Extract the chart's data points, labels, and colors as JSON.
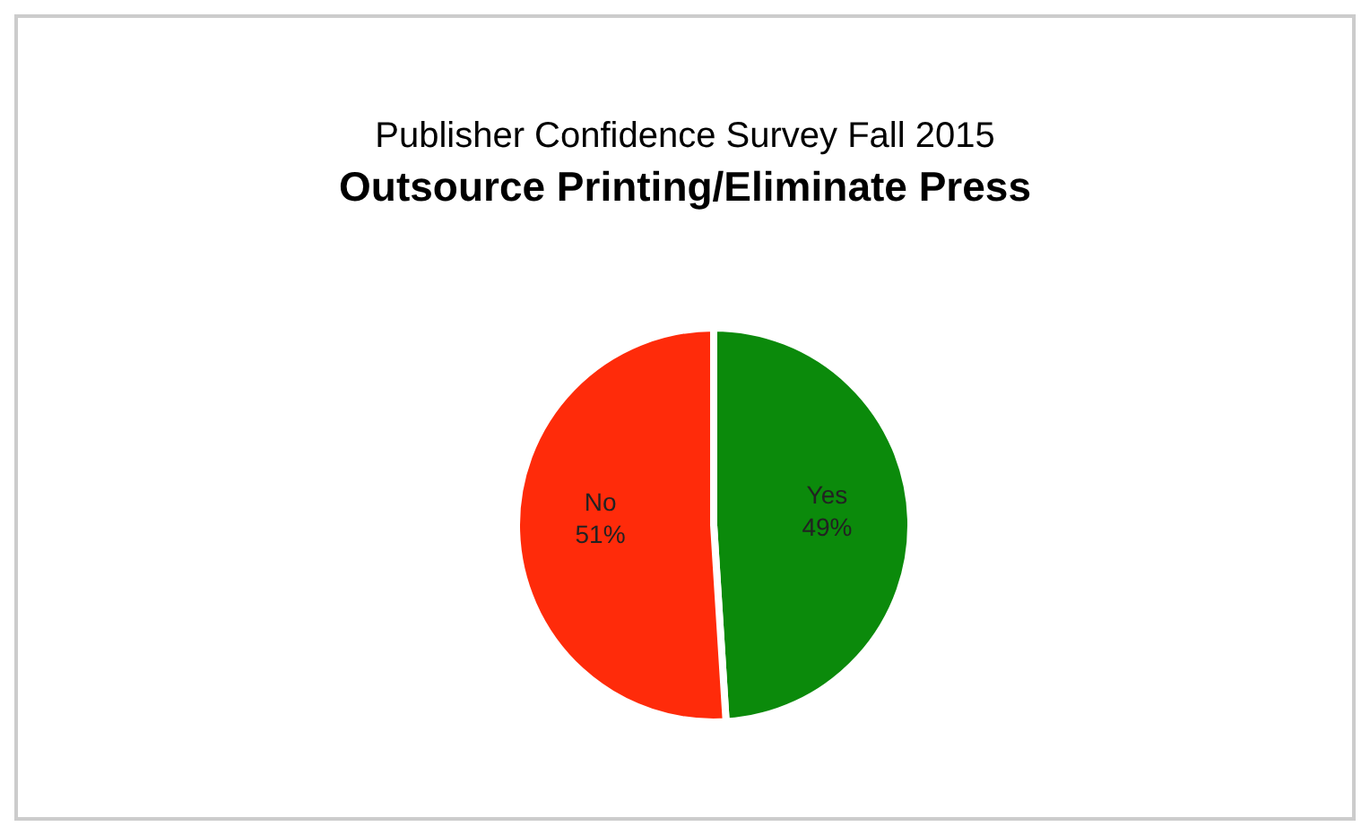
{
  "chart_data": {
    "type": "pie",
    "subtitle": "Publisher Confidence Survey Fall 2015",
    "title": "Outsource Printing/Eliminate Press",
    "categories": [
      "Yes",
      "No"
    ],
    "values": [
      49,
      51
    ],
    "colors": [
      "#0b8a0b",
      "#ff2b0a"
    ],
    "value_labels": [
      "49%",
      "51%"
    ],
    "legend": false
  }
}
